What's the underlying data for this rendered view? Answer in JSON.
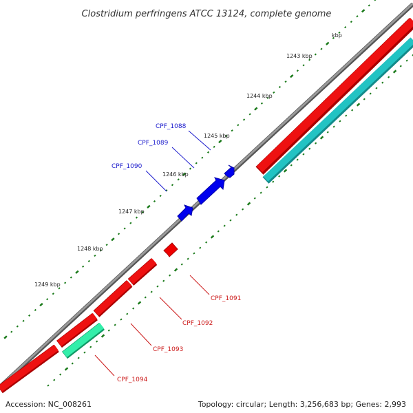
{
  "title": "Clostridium perfringens ATCC 13124, complete genome",
  "accession": "Accession: NC_008261",
  "summary": "Topology: circular; Length: 3,256,683 bp; Genes: 2,993",
  "colors": {
    "backbone": "#7a7a7a",
    "forward_cds": "#0000ee",
    "reverse_cds": "#ee0000",
    "reverse_rna": "#22d39a",
    "gc_track": "#22c3c3",
    "tick": "#1a7a1a",
    "forward_label": "#1a1acc",
    "reverse_label": "#cc1a1a"
  },
  "ticks": [
    {
      "label": "kbp",
      "kbp": 1242
    },
    {
      "label": "1243 kbp",
      "kbp": 1243
    },
    {
      "label": "1244 kbp",
      "kbp": 1244
    },
    {
      "label": "1245 kbp",
      "kbp": 1245
    },
    {
      "label": "1246 kbp",
      "kbp": 1246
    },
    {
      "label": "1247 kbp",
      "kbp": 1247
    },
    {
      "label": "1248 kbp",
      "kbp": 1248
    },
    {
      "label": "1249 kbp",
      "kbp": 1249
    }
  ],
  "genes": [
    {
      "name": "CPF_1088",
      "strand": "forward"
    },
    {
      "name": "CPF_1089",
      "strand": "forward"
    },
    {
      "name": "CPF_1090",
      "strand": "forward"
    },
    {
      "name": "CPF_1091",
      "strand": "reverse"
    },
    {
      "name": "CPF_1092",
      "strand": "reverse"
    },
    {
      "name": "CPF_1093",
      "strand": "reverse"
    },
    {
      "name": "CPF_1094",
      "strand": "reverse"
    }
  ]
}
